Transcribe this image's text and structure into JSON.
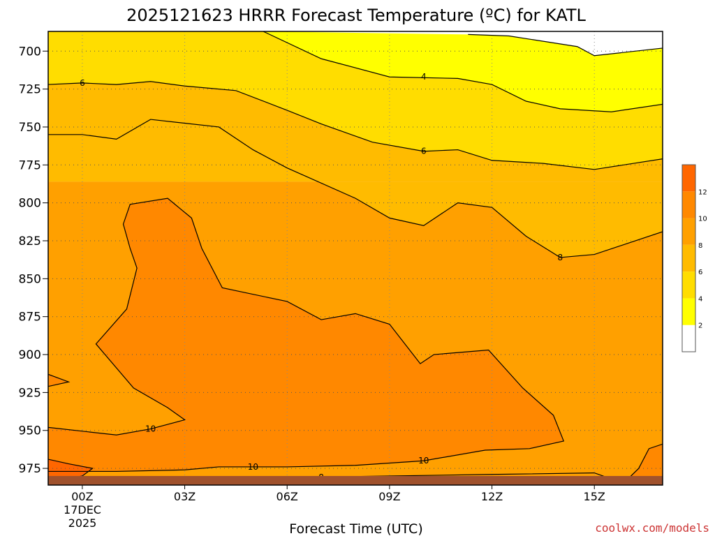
{
  "chart_data": {
    "type": "heatmap",
    "title": "2025121623 HRRR Forecast Temperature (ºC) for KATL",
    "xlabel": "Forecast Time (UTC)",
    "ylabel": "",
    "date_label": [
      "17DEC",
      "2025"
    ],
    "credit": "coolwx.com/models",
    "x_unit": "hours from 00Z 17DEC 2025",
    "xlim": [
      -1,
      17
    ],
    "ylim": [
      986,
      687
    ],
    "x_ticks": [
      {
        "x": 0,
        "label": "00Z"
      },
      {
        "x": 3,
        "label": "03Z"
      },
      {
        "x": 6,
        "label": "06Z"
      },
      {
        "x": 9,
        "label": "09Z"
      },
      {
        "x": 12,
        "label": "12Z"
      },
      {
        "x": 15,
        "label": "15Z"
      }
    ],
    "y_ticks": [
      {
        "y": 700,
        "label": "700"
      },
      {
        "y": 725,
        "label": "725"
      },
      {
        "y": 750,
        "label": "750"
      },
      {
        "y": 775,
        "label": "775"
      },
      {
        "y": 800,
        "label": "800"
      },
      {
        "y": 825,
        "label": "825"
      },
      {
        "y": 850,
        "label": "850"
      },
      {
        "y": 875,
        "label": "875"
      },
      {
        "y": 900,
        "label": "900"
      },
      {
        "y": 925,
        "label": "925"
      },
      {
        "y": 950,
        "label": "950"
      },
      {
        "y": 975,
        "label": "975"
      }
    ],
    "grid": true,
    "colorbar": {
      "ticks": [
        "2",
        "4",
        "6",
        "8",
        "10",
        "12"
      ],
      "bins": [
        {
          "from": 0,
          "to": 2,
          "color": "#ffffff"
        },
        {
          "from": 2,
          "to": 4,
          "color": "#ffff00"
        },
        {
          "from": 4,
          "to": 6,
          "color": "#ffdd00"
        },
        {
          "from": 6,
          "to": 8,
          "color": "#ffbb00"
        },
        {
          "from": 8,
          "to": 10,
          "color": "#ffa000"
        },
        {
          "from": 10,
          "to": 12,
          "color": "#ff8800"
        },
        {
          "from": 12,
          "to": 14,
          "color": "#ff6600"
        }
      ]
    },
    "ground_color": "#a0522d",
    "regions": [
      {
        "value": "0-2",
        "color": "#ffffff",
        "points": [
          [
            11.3,
            687
          ],
          [
            17,
            687
          ],
          [
            17,
            698
          ],
          [
            15,
            703
          ],
          [
            14.5,
            697
          ],
          [
            12.5,
            690
          ],
          [
            11.3,
            689
          ]
        ]
      },
      {
        "value": "2-4",
        "color": "#ffff00",
        "points": [
          [
            5.3,
            687
          ],
          [
            11.3,
            689
          ],
          [
            12.5,
            690
          ],
          [
            14.5,
            697
          ],
          [
            15,
            703
          ],
          [
            17,
            698
          ],
          [
            17,
            735
          ],
          [
            15.5,
            740
          ],
          [
            14,
            738
          ],
          [
            13,
            733
          ],
          [
            12,
            722
          ],
          [
            11,
            718
          ],
          [
            9,
            717
          ],
          [
            7,
            705
          ],
          [
            5.3,
            687
          ]
        ]
      },
      {
        "value": "4-6",
        "color": "#ffdd00",
        "points": [
          [
            -1,
            687
          ],
          [
            5.3,
            687
          ],
          [
            7,
            705
          ],
          [
            9,
            717
          ],
          [
            11,
            718
          ],
          [
            12,
            722
          ],
          [
            13,
            733
          ],
          [
            14,
            738
          ],
          [
            15.5,
            740
          ],
          [
            17,
            735
          ],
          [
            17,
            771
          ],
          [
            15,
            778
          ],
          [
            13.5,
            774
          ],
          [
            12,
            772
          ],
          [
            11,
            765
          ],
          [
            10,
            766
          ],
          [
            8.5,
            760
          ],
          [
            7,
            748
          ],
          [
            6,
            739
          ],
          [
            4.5,
            726
          ],
          [
            3,
            723
          ],
          [
            2,
            720
          ],
          [
            1,
            722
          ],
          [
            0,
            721
          ],
          [
            -1,
            722
          ]
        ]
      },
      {
        "value": "6-8",
        "color": "#ffbb00",
        "points": [
          [
            -1,
            722
          ],
          [
            0,
            721
          ],
          [
            1,
            722
          ],
          [
            2,
            720
          ],
          [
            3,
            723
          ],
          [
            4.5,
            726
          ],
          [
            6,
            739
          ],
          [
            7,
            748
          ],
          [
            8.5,
            760
          ],
          [
            10,
            766
          ],
          [
            11,
            765
          ],
          [
            12,
            772
          ],
          [
            13.5,
            774
          ],
          [
            15,
            778
          ],
          [
            17,
            771
          ],
          [
            17,
            786
          ],
          [
            -1,
            786
          ]
        ]
      },
      {
        "value": "8-10",
        "color": "#ffa000",
        "points": [
          [
            -1,
            786
          ],
          [
            17,
            786
          ],
          [
            17,
            986
          ],
          [
            -1,
            986
          ]
        ]
      },
      {
        "value": "6-8",
        "color": "#ffbb00",
        "points": [
          [
            -1,
            786
          ],
          [
            0,
            755
          ],
          [
            1,
            758
          ],
          [
            2,
            745
          ],
          [
            4,
            750
          ],
          [
            5,
            765
          ],
          [
            6,
            777
          ],
          [
            8,
            797
          ],
          [
            9,
            810
          ],
          [
            10,
            815
          ],
          [
            11,
            800
          ],
          [
            12,
            803
          ],
          [
            13,
            822
          ],
          [
            14,
            836
          ],
          [
            15,
            834
          ],
          [
            17,
            819
          ],
          [
            17,
            786
          ]
        ]
      },
      {
        "value": "10-12",
        "color": "#ff8800",
        "points": [
          [
            -1,
            948
          ],
          [
            1,
            953
          ],
          [
            2,
            949
          ],
          [
            3,
            943
          ],
          [
            2.5,
            935
          ],
          [
            1.5,
            922
          ],
          [
            0.4,
            893
          ],
          [
            1.3,
            870
          ],
          [
            1.6,
            843
          ],
          [
            1.4,
            830
          ],
          [
            1.2,
            814
          ],
          [
            1.4,
            801
          ],
          [
            2.5,
            797
          ],
          [
            3.2,
            810
          ],
          [
            3.5,
            830
          ],
          [
            4.1,
            856
          ],
          [
            6,
            865
          ],
          [
            7,
            877
          ],
          [
            8,
            873
          ],
          [
            9,
            880
          ],
          [
            9.9,
            906
          ],
          [
            10.3,
            900
          ],
          [
            11.9,
            897
          ],
          [
            12.9,
            922
          ],
          [
            13.8,
            940
          ],
          [
            14.1,
            957
          ],
          [
            13.1,
            962
          ],
          [
            11.8,
            963
          ],
          [
            10,
            970
          ],
          [
            8,
            973
          ],
          [
            6,
            974
          ],
          [
            4,
            974
          ],
          [
            3,
            976
          ],
          [
            1,
            977
          ],
          [
            -1,
            977
          ]
        ]
      },
      {
        "value": "10-12",
        "color": "#ff8800",
        "points": [
          [
            -1,
            913
          ],
          [
            -0.4,
            918
          ],
          [
            -1,
            921
          ]
        ]
      },
      {
        "value": "12-14",
        "color": "#ff6600",
        "points": [
          [
            -1,
            969
          ],
          [
            -0.4,
            972
          ],
          [
            0.3,
            975
          ],
          [
            0,
            980
          ],
          [
            -1,
            984
          ]
        ]
      },
      {
        "value": "8-10",
        "color": "#ffa000",
        "points": [
          [
            0,
            984
          ],
          [
            6,
            981
          ],
          [
            12,
            979
          ],
          [
            15,
            978
          ],
          [
            16,
            986
          ],
          [
            0,
            986
          ]
        ]
      },
      {
        "value": "10-12",
        "color": "#ff8800",
        "points": [
          [
            15.8,
            986
          ],
          [
            16.3,
            975
          ],
          [
            16.6,
            962
          ],
          [
            17,
            959
          ],
          [
            17,
            986
          ]
        ]
      }
    ],
    "contours": [
      {
        "level": 4,
        "label": "4",
        "label_at": [
          10.0,
          717
        ],
        "points": [
          [
            5.3,
            687
          ],
          [
            7,
            705
          ],
          [
            9,
            717
          ],
          [
            11,
            718
          ],
          [
            12,
            722
          ],
          [
            13,
            733
          ],
          [
            14,
            738
          ],
          [
            15.5,
            740
          ],
          [
            17,
            735
          ]
        ]
      },
      {
        "level": 4,
        "label": "",
        "label_at": null,
        "points": [
          [
            11.3,
            689
          ],
          [
            12.5,
            690
          ],
          [
            14.5,
            697
          ],
          [
            15,
            703
          ],
          [
            17,
            698
          ]
        ]
      },
      {
        "level": 6,
        "label": "6",
        "label_at": [
          0.0,
          721
        ],
        "points": [
          [
            -1,
            722
          ],
          [
            0,
            721
          ],
          [
            1,
            722
          ],
          [
            2,
            720
          ],
          [
            3,
            723
          ],
          [
            4.5,
            726
          ],
          [
            6,
            739
          ],
          [
            7,
            748
          ],
          [
            8.5,
            760
          ],
          [
            10,
            766
          ],
          [
            11,
            765
          ],
          [
            12,
            772
          ],
          [
            13.5,
            774
          ],
          [
            15,
            778
          ],
          [
            17,
            771
          ]
        ]
      },
      {
        "level": 6,
        "label": "6",
        "label_at": [
          10.0,
          766
        ],
        "points": [
          [
            -1,
            755
          ],
          [
            0,
            755
          ],
          [
            1,
            758
          ],
          [
            2,
            745
          ],
          [
            4,
            750
          ],
          [
            5,
            765
          ],
          [
            6,
            777
          ],
          [
            8,
            797
          ],
          [
            9,
            810
          ],
          [
            10,
            815
          ],
          [
            11,
            800
          ],
          [
            12,
            803
          ],
          [
            13,
            822
          ],
          [
            14,
            836
          ],
          [
            15,
            834
          ],
          [
            17,
            819
          ]
        ]
      },
      {
        "level": 8,
        "label": "8",
        "label_at": [
          14.0,
          836
        ],
        "points": []
      },
      {
        "level": 10,
        "label": "10",
        "label_at": [
          2.0,
          949
        ],
        "points": [
          [
            -1,
            948
          ],
          [
            1,
            953
          ],
          [
            2,
            949
          ],
          [
            3,
            943
          ],
          [
            2.5,
            935
          ],
          [
            1.5,
            922
          ],
          [
            0.4,
            893
          ],
          [
            1.3,
            870
          ],
          [
            1.6,
            843
          ],
          [
            1.4,
            830
          ],
          [
            1.2,
            814
          ],
          [
            1.4,
            801
          ],
          [
            2.5,
            797
          ],
          [
            3.2,
            810
          ],
          [
            3.5,
            830
          ],
          [
            4.1,
            856
          ],
          [
            6,
            865
          ],
          [
            7,
            877
          ],
          [
            8,
            873
          ],
          [
            9,
            880
          ],
          [
            9.9,
            906
          ],
          [
            10.3,
            900
          ],
          [
            11.9,
            897
          ],
          [
            12.9,
            922
          ],
          [
            13.8,
            940
          ],
          [
            14.1,
            957
          ],
          [
            13.1,
            962
          ],
          [
            11.8,
            963
          ],
          [
            10,
            970
          ],
          [
            8,
            973
          ],
          [
            6,
            974
          ],
          [
            4,
            974
          ],
          [
            3,
            976
          ],
          [
            1,
            977
          ],
          [
            -1,
            977
          ]
        ]
      },
      {
        "level": 10,
        "label": "10",
        "label_at": [
          10.0,
          970
        ],
        "points": []
      },
      {
        "level": 10,
        "label": "10",
        "label_at": [
          5.0,
          974
        ],
        "points": []
      },
      {
        "level": 8,
        "label": "8",
        "label_at": [
          7.0,
          981
        ],
        "points": [
          [
            0,
            984
          ],
          [
            6,
            981
          ],
          [
            12,
            979
          ],
          [
            15,
            978
          ],
          [
            16,
            986
          ]
        ]
      },
      {
        "level": 10,
        "label": "",
        "label_at": null,
        "points": [
          [
            -1,
            913
          ],
          [
            -0.4,
            918
          ],
          [
            -1,
            921
          ]
        ]
      },
      {
        "level": 12,
        "label": "",
        "label_at": null,
        "points": [
          [
            -1,
            969
          ],
          [
            -0.4,
            972
          ],
          [
            0.3,
            975
          ],
          [
            0,
            980
          ],
          [
            -1,
            984
          ]
        ]
      },
      {
        "level": 10,
        "label": "",
        "label_at": null,
        "points": [
          [
            15.8,
            986
          ],
          [
            16.3,
            975
          ],
          [
            16.6,
            962
          ],
          [
            17,
            959
          ]
        ]
      }
    ]
  }
}
